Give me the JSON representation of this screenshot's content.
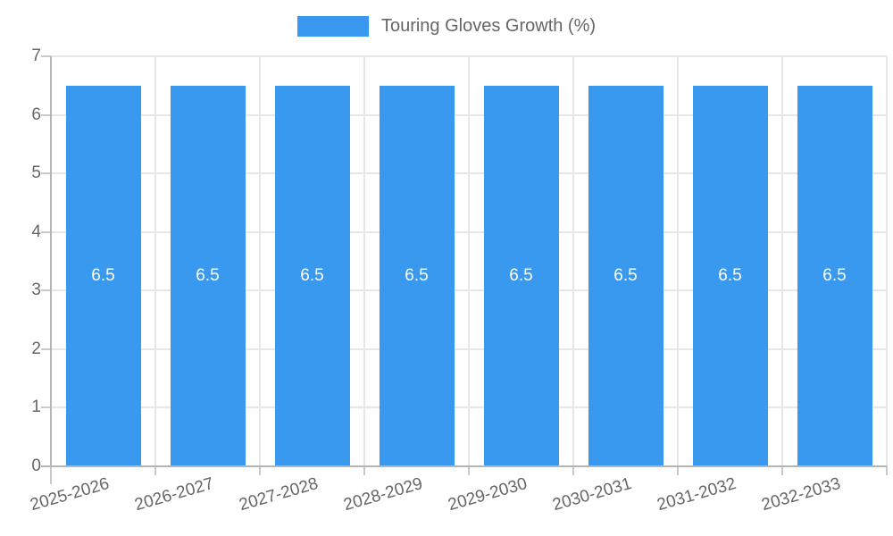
{
  "colors": {
    "bar": "#3999EE",
    "grid": "#e7e7e7",
    "axis": "#b5b5b5",
    "tick": "#c9c9c9",
    "tick_text": "#666666",
    "bar_value_text": "#ffffff",
    "legend_text": "#666666"
  },
  "legend": {
    "position": "top",
    "label": "Touring Gloves Growth (%)"
  },
  "chart_data": {
    "type": "bar",
    "title": "Touring Gloves Growth (%)",
    "categories": [
      "2025-2026",
      "2026-2027",
      "2027-2028",
      "2028-2029",
      "2029-2030",
      "2030-2031",
      "2031-2032",
      "2032-2033"
    ],
    "series": [
      {
        "name": "Touring Gloves Growth (%)",
        "color": "#3999EE",
        "values": [
          6.5,
          6.5,
          6.5,
          6.5,
          6.5,
          6.5,
          6.5,
          6.5
        ]
      }
    ],
    "value_labels_shown": true,
    "value_labels": [
      "6.5",
      "6.5",
      "6.5",
      "6.5",
      "6.5",
      "6.5",
      "6.5",
      "6.5"
    ],
    "xlabel": "",
    "ylabel": "",
    "ylim": [
      0,
      7
    ],
    "yticks": [
      0,
      1,
      2,
      3,
      4,
      5,
      6,
      7
    ],
    "grid": true,
    "legend_position": "top"
  }
}
